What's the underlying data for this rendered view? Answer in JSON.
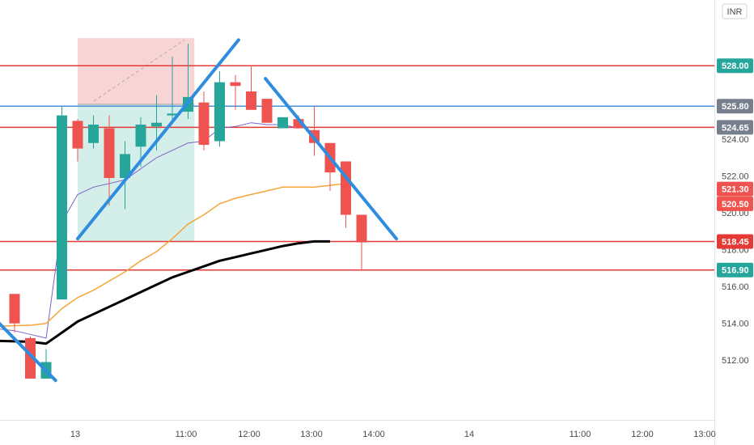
{
  "chart_data": {
    "type": "candlestick",
    "currency": "INR",
    "y_range": [
      511.0,
      529.5
    ],
    "y_ticks": [
      "512.00",
      "514.00",
      "516.00",
      "518.00",
      "520.00",
      "522.00",
      "524.00"
    ],
    "x_ticks": [
      "13",
      "11:00",
      "12:00",
      "13:00",
      "14:00",
      "14",
      "11:00",
      "12:00",
      "13:00"
    ],
    "candles": [
      {
        "o": 515.6,
        "h": 515.6,
        "l": 513.5,
        "c": 514.0
      },
      {
        "o": 513.2,
        "h": 513.3,
        "l": 511.0,
        "c": 511.0
      },
      {
        "o": 511.0,
        "h": 512.6,
        "l": 511.0,
        "c": 511.9
      },
      {
        "o": 515.3,
        "h": 525.8,
        "l": 515.3,
        "c": 525.3
      },
      {
        "o": 525.0,
        "h": 525.1,
        "l": 522.8,
        "c": 523.5
      },
      {
        "o": 523.8,
        "h": 525.3,
        "l": 523.5,
        "c": 524.8
      },
      {
        "o": 524.6,
        "h": 525.3,
        "l": 520.4,
        "c": 521.9
      },
      {
        "o": 521.9,
        "h": 523.9,
        "l": 520.2,
        "c": 523.2
      },
      {
        "o": 523.6,
        "h": 525.2,
        "l": 522.5,
        "c": 524.8
      },
      {
        "o": 524.7,
        "h": 526.4,
        "l": 523.4,
        "c": 524.9
      },
      {
        "o": 525.3,
        "h": 528.5,
        "l": 525.0,
        "c": 525.4
      },
      {
        "o": 525.5,
        "h": 529.2,
        "l": 525.1,
        "c": 526.3
      },
      {
        "o": 526.0,
        "h": 526.6,
        "l": 523.4,
        "c": 523.7
      },
      {
        "o": 523.9,
        "h": 527.7,
        "l": 523.6,
        "c": 527.1
      },
      {
        "o": 527.1,
        "h": 527.5,
        "l": 525.6,
        "c": 526.9
      },
      {
        "o": 526.6,
        "h": 528.0,
        "l": 525.6,
        "c": 525.6
      },
      {
        "o": 526.2,
        "h": 526.2,
        "l": 524.9,
        "c": 524.9
      },
      {
        "o": 524.6,
        "h": 525.2,
        "l": 524.6,
        "c": 525.2
      },
      {
        "o": 525.1,
        "h": 525.3,
        "l": 524.6,
        "c": 524.6
      },
      {
        "o": 524.5,
        "h": 525.8,
        "l": 523.1,
        "c": 523.8
      },
      {
        "o": 523.8,
        "h": 523.8,
        "l": 521.2,
        "c": 522.2
      },
      {
        "o": 522.8,
        "h": 522.8,
        "l": 519.2,
        "c": 519.9
      },
      {
        "o": 519.9,
        "h": 519.9,
        "l": 516.9,
        "c": 518.4
      }
    ],
    "horizontal_levels": [
      {
        "value": 528.0,
        "label": "528.00",
        "color": "#e53935",
        "badge_color": "#26a69a"
      },
      {
        "value": 525.8,
        "label": "525.80",
        "color": "#4a90d9",
        "badge_color": "#777e8c"
      },
      {
        "value": 524.65,
        "label": "524.65",
        "color": "#e53935",
        "badge_color": "#777e8c"
      },
      {
        "value": 518.45,
        "label": "518.45",
        "color": "#e53935",
        "badge_color": "#e53935"
      },
      {
        "value": 516.9,
        "label": "516.90",
        "color": "#e53935",
        "badge_color": "#26a69a"
      }
    ],
    "price_badges": [
      {
        "value": 521.3,
        "label": "521.30",
        "color": "#ef5350"
      },
      {
        "value": 520.5,
        "label": "520.50",
        "color": "#ef5350"
      }
    ],
    "moving_averages": [
      {
        "color": "#7b61c9",
        "width": 1,
        "points": [
          [
            -3,
            513.9
          ],
          [
            0,
            513.6
          ],
          [
            1,
            513.4
          ],
          [
            2,
            513.2
          ],
          [
            3,
            519.5
          ],
          [
            4,
            521.0
          ],
          [
            5,
            521.4
          ],
          [
            6,
            521.6
          ],
          [
            7,
            521.8
          ],
          [
            8,
            522.4
          ],
          [
            9,
            523.0
          ],
          [
            10,
            523.4
          ],
          [
            11,
            523.8
          ],
          [
            12,
            523.9
          ],
          [
            13,
            524.6
          ],
          [
            14,
            524.7
          ],
          [
            15,
            524.9
          ],
          [
            16,
            524.8
          ],
          [
            17,
            524.8
          ],
          [
            18,
            524.6
          ]
        ]
      },
      {
        "color": "#f5a53a",
        "width": 1.5,
        "points": [
          [
            -3,
            513.8
          ],
          [
            1,
            513.9
          ],
          [
            2,
            514.0
          ],
          [
            3,
            514.8
          ],
          [
            4,
            515.4
          ],
          [
            5,
            515.8
          ],
          [
            6,
            516.3
          ],
          [
            7,
            516.8
          ],
          [
            8,
            517.4
          ],
          [
            9,
            517.9
          ],
          [
            10,
            518.6
          ],
          [
            11,
            519.4
          ],
          [
            12,
            519.9
          ],
          [
            13,
            520.5
          ],
          [
            14,
            520.8
          ],
          [
            15,
            521.0
          ],
          [
            16,
            521.2
          ],
          [
            17,
            521.4
          ],
          [
            18,
            521.4
          ],
          [
            19,
            521.4
          ],
          [
            20,
            521.5
          ],
          [
            21,
            521.6
          ]
        ]
      },
      {
        "color": "#000000",
        "width": 3,
        "points": [
          [
            -3,
            513.1
          ],
          [
            1,
            513.0
          ],
          [
            2,
            512.9
          ],
          [
            3,
            513.5
          ],
          [
            4,
            514.1
          ],
          [
            5,
            514.5
          ],
          [
            6,
            514.9
          ],
          [
            7,
            515.3
          ],
          [
            8,
            515.7
          ],
          [
            9,
            516.1
          ],
          [
            10,
            516.5
          ],
          [
            11,
            516.8
          ],
          [
            12,
            517.1
          ],
          [
            13,
            517.4
          ],
          [
            14,
            517.6
          ],
          [
            15,
            517.8
          ],
          [
            16,
            518.0
          ],
          [
            17,
            518.2
          ],
          [
            18,
            518.35
          ],
          [
            19,
            518.45
          ],
          [
            20,
            518.45
          ]
        ]
      }
    ],
    "trendlines": [
      {
        "color": "#2f8de0",
        "from": [
          -3.5,
          516.2
        ],
        "to": [
          2.6,
          510.9
        ]
      },
      {
        "color": "#2f8de0",
        "from": [
          4.0,
          518.6
        ],
        "to": [
          14.2,
          529.4
        ]
      },
      {
        "color": "#2f8de0",
        "from": [
          15.9,
          527.3
        ],
        "to": [
          24.2,
          518.6
        ]
      }
    ],
    "position_zone": {
      "x_from": 4.0,
      "x_to": 11.4,
      "entry": 525.9,
      "target_top": 529.5,
      "stop": 518.45
    }
  }
}
